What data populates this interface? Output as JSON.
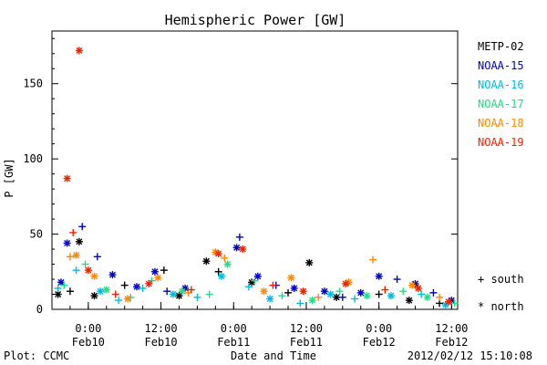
{
  "chart_data": {
    "type": "scatter",
    "title": "Hemispheric Power [GW]",
    "xlabel": "Date and Time",
    "ylabel": "P [GW]",
    "ylim": [
      0,
      185
    ],
    "xlim": [
      "2012-02-09T18:00",
      "2012-02-12T13:00"
    ],
    "y_ticks": [
      0,
      50,
      100,
      150
    ],
    "x_ticks": [
      {
        "time": "2012-02-10T00:00",
        "label": "0:00",
        "date_label": "Feb10"
      },
      {
        "time": "2012-02-10T12:00",
        "label": "12:00",
        "date_label": "Feb10"
      },
      {
        "time": "2012-02-11T00:00",
        "label": "0:00",
        "date_label": "Feb11"
      },
      {
        "time": "2012-02-11T12:00",
        "label": "12:00",
        "date_label": "Feb11"
      },
      {
        "time": "2012-02-12T00:00",
        "label": "0:00",
        "date_label": "Feb12"
      },
      {
        "time": "2012-02-12T12:00",
        "label": "12:00",
        "date_label": "Feb12"
      }
    ],
    "legend_position": "right",
    "series": [
      {
        "name": "METP-02",
        "color": "#000000",
        "points": [
          {
            "t": "2012-02-09T19:00",
            "p": 10,
            "h": "north"
          },
          {
            "t": "2012-02-09T21:00",
            "p": 12,
            "h": "south"
          },
          {
            "t": "2012-02-09T22:30",
            "p": 45,
            "h": "north"
          },
          {
            "t": "2012-02-10T01:00",
            "p": 9,
            "h": "north"
          },
          {
            "t": "2012-02-10T06:00",
            "p": 16,
            "h": "south"
          },
          {
            "t": "2012-02-10T12:30",
            "p": 26,
            "h": "south"
          },
          {
            "t": "2012-02-10T15:00",
            "p": 9,
            "h": "north"
          },
          {
            "t": "2012-02-10T19:30",
            "p": 32,
            "h": "north"
          },
          {
            "t": "2012-02-10T21:30",
            "p": 25,
            "h": "south"
          },
          {
            "t": "2012-02-11T03:00",
            "p": 18,
            "h": "north"
          },
          {
            "t": "2012-02-11T09:00",
            "p": 11,
            "h": "south"
          },
          {
            "t": "2012-02-11T12:30",
            "p": 31,
            "h": "north"
          },
          {
            "t": "2012-02-11T17:00",
            "p": 8,
            "h": "north"
          },
          {
            "t": "2012-02-12T00:00",
            "p": 10,
            "h": "south"
          },
          {
            "t": "2012-02-12T05:00",
            "p": 6,
            "h": "north"
          },
          {
            "t": "2012-02-12T10:00",
            "p": 4,
            "h": "south"
          }
        ]
      },
      {
        "name": "NOAA-15",
        "color": "#0000cc",
        "points": [
          {
            "t": "2012-02-09T19:30",
            "p": 18,
            "h": "north"
          },
          {
            "t": "2012-02-09T20:30",
            "p": 44,
            "h": "north"
          },
          {
            "t": "2012-02-09T23:00",
            "p": 55,
            "h": "south"
          },
          {
            "t": "2012-02-10T01:30",
            "p": 35,
            "h": "south"
          },
          {
            "t": "2012-02-10T04:00",
            "p": 23,
            "h": "north"
          },
          {
            "t": "2012-02-10T08:00",
            "p": 15,
            "h": "north"
          },
          {
            "t": "2012-02-10T11:00",
            "p": 25,
            "h": "north"
          },
          {
            "t": "2012-02-10T13:00",
            "p": 12,
            "h": "south"
          },
          {
            "t": "2012-02-10T16:00",
            "p": 14,
            "h": "north"
          },
          {
            "t": "2012-02-11T00:30",
            "p": 41,
            "h": "north"
          },
          {
            "t": "2012-02-11T01:00",
            "p": 48,
            "h": "south"
          },
          {
            "t": "2012-02-11T04:00",
            "p": 22,
            "h": "north"
          },
          {
            "t": "2012-02-11T07:00",
            "p": 16,
            "h": "south"
          },
          {
            "t": "2012-02-11T10:00",
            "p": 14,
            "h": "north"
          },
          {
            "t": "2012-02-11T15:00",
            "p": 12,
            "h": "north"
          },
          {
            "t": "2012-02-11T18:00",
            "p": 8,
            "h": "south"
          },
          {
            "t": "2012-02-11T21:00",
            "p": 11,
            "h": "north"
          },
          {
            "t": "2012-02-12T00:00",
            "p": 22,
            "h": "north"
          },
          {
            "t": "2012-02-12T03:00",
            "p": 20,
            "h": "south"
          },
          {
            "t": "2012-02-12T06:00",
            "p": 17,
            "h": "north"
          },
          {
            "t": "2012-02-12T09:00",
            "p": 11,
            "h": "south"
          },
          {
            "t": "2012-02-12T12:00",
            "p": 6,
            "h": "north"
          }
        ]
      },
      {
        "name": "NOAA-16",
        "color": "#00bbdd",
        "points": [
          {
            "t": "2012-02-09T19:00",
            "p": 14,
            "h": "south"
          },
          {
            "t": "2012-02-09T22:00",
            "p": 26,
            "h": "south"
          },
          {
            "t": "2012-02-10T02:00",
            "p": 12,
            "h": "north"
          },
          {
            "t": "2012-02-10T05:00",
            "p": 6,
            "h": "south"
          },
          {
            "t": "2012-02-10T09:00",
            "p": 14,
            "h": "south"
          },
          {
            "t": "2012-02-10T14:00",
            "p": 10,
            "h": "north"
          },
          {
            "t": "2012-02-10T18:00",
            "p": 8,
            "h": "south"
          },
          {
            "t": "2012-02-10T22:00",
            "p": 22,
            "h": "north"
          },
          {
            "t": "2012-02-11T02:30",
            "p": 15,
            "h": "south"
          },
          {
            "t": "2012-02-11T06:00",
            "p": 7,
            "h": "north"
          },
          {
            "t": "2012-02-11T11:00",
            "p": 4,
            "h": "south"
          },
          {
            "t": "2012-02-11T16:00",
            "p": 10,
            "h": "north"
          },
          {
            "t": "2012-02-11T20:00",
            "p": 7,
            "h": "south"
          },
          {
            "t": "2012-02-12T02:00",
            "p": 9,
            "h": "north"
          },
          {
            "t": "2012-02-12T07:00",
            "p": 10,
            "h": "south"
          },
          {
            "t": "2012-02-12T11:00",
            "p": 3,
            "h": "north"
          }
        ]
      },
      {
        "name": "NOAA-17",
        "color": "#22dd88",
        "points": [
          {
            "t": "2012-02-09T20:00",
            "p": 16,
            "h": "south"
          },
          {
            "t": "2012-02-09T23:30",
            "p": 30,
            "h": "south"
          },
          {
            "t": "2012-02-10T03:00",
            "p": 13,
            "h": "north"
          },
          {
            "t": "2012-02-10T07:00",
            "p": 8,
            "h": "south"
          },
          {
            "t": "2012-02-10T10:30",
            "p": 19,
            "h": "south"
          },
          {
            "t": "2012-02-10T15:30",
            "p": 12,
            "h": "north"
          },
          {
            "t": "2012-02-10T20:00",
            "p": 10,
            "h": "south"
          },
          {
            "t": "2012-02-10T23:00",
            "p": 30,
            "h": "north"
          },
          {
            "t": "2012-02-11T03:30",
            "p": 19,
            "h": "south"
          },
          {
            "t": "2012-02-11T08:00",
            "p": 9,
            "h": "south"
          },
          {
            "t": "2012-02-11T13:00",
            "p": 6,
            "h": "north"
          },
          {
            "t": "2012-02-11T17:30",
            "p": 12,
            "h": "south"
          },
          {
            "t": "2012-02-11T22:00",
            "p": 9,
            "h": "north"
          },
          {
            "t": "2012-02-12T04:00",
            "p": 12,
            "h": "south"
          },
          {
            "t": "2012-02-12T08:00",
            "p": 8,
            "h": "north"
          },
          {
            "t": "2012-02-12T12:30",
            "p": 4,
            "h": "south"
          }
        ]
      },
      {
        "name": "NOAA-18",
        "color": "#ff8800",
        "points": [
          {
            "t": "2012-02-09T21:00",
            "p": 35,
            "h": "south"
          },
          {
            "t": "2012-02-09T22:00",
            "p": 36,
            "h": "north"
          },
          {
            "t": "2012-02-10T01:00",
            "p": 22,
            "h": "north"
          },
          {
            "t": "2012-02-10T06:30",
            "p": 7,
            "h": "north"
          },
          {
            "t": "2012-02-10T11:30",
            "p": 21,
            "h": "north"
          },
          {
            "t": "2012-02-10T16:30",
            "p": 11,
            "h": "south"
          },
          {
            "t": "2012-02-10T21:00",
            "p": 38,
            "h": "north"
          },
          {
            "t": "2012-02-10T22:30",
            "p": 34,
            "h": "south"
          },
          {
            "t": "2012-02-11T05:00",
            "p": 12,
            "h": "north"
          },
          {
            "t": "2012-02-11T09:30",
            "p": 21,
            "h": "north"
          },
          {
            "t": "2012-02-11T14:00",
            "p": 8,
            "h": "south"
          },
          {
            "t": "2012-02-11T19:00",
            "p": 18,
            "h": "north"
          },
          {
            "t": "2012-02-11T23:00",
            "p": 33,
            "h": "south"
          },
          {
            "t": "2012-02-12T05:30",
            "p": 16,
            "h": "north"
          },
          {
            "t": "2012-02-12T10:00",
            "p": 8,
            "h": "south"
          }
        ]
      },
      {
        "name": "NOAA-19",
        "color": "#ee2200",
        "points": [
          {
            "t": "2012-02-09T20:30",
            "p": 87,
            "h": "north"
          },
          {
            "t": "2012-02-09T21:30",
            "p": 51,
            "h": "south"
          },
          {
            "t": "2012-02-09T22:30",
            "p": 172,
            "h": "north"
          },
          {
            "t": "2012-02-10T00:00",
            "p": 26,
            "h": "north"
          },
          {
            "t": "2012-02-10T04:30",
            "p": 10,
            "h": "south"
          },
          {
            "t": "2012-02-10T10:00",
            "p": 17,
            "h": "north"
          },
          {
            "t": "2012-02-10T17:00",
            "p": 13,
            "h": "south"
          },
          {
            "t": "2012-02-10T21:30",
            "p": 37,
            "h": "north"
          },
          {
            "t": "2012-02-11T01:30",
            "p": 40,
            "h": "north"
          },
          {
            "t": "2012-02-11T06:30",
            "p": 16,
            "h": "south"
          },
          {
            "t": "2012-02-11T11:30",
            "p": 12,
            "h": "north"
          },
          {
            "t": "2012-02-11T18:30",
            "p": 17,
            "h": "north"
          },
          {
            "t": "2012-02-12T01:00",
            "p": 13,
            "h": "south"
          },
          {
            "t": "2012-02-12T06:30",
            "p": 14,
            "h": "north"
          },
          {
            "t": "2012-02-12T11:30",
            "p": 5,
            "h": "north"
          }
        ]
      }
    ],
    "marker_legend": [
      {
        "symbol": "+",
        "label": "south"
      },
      {
        "symbol": "*",
        "label": "north"
      }
    ]
  },
  "footer": {
    "credit": "Plot: CCMC",
    "timestamp": "2012/02/12 15:10:08"
  }
}
